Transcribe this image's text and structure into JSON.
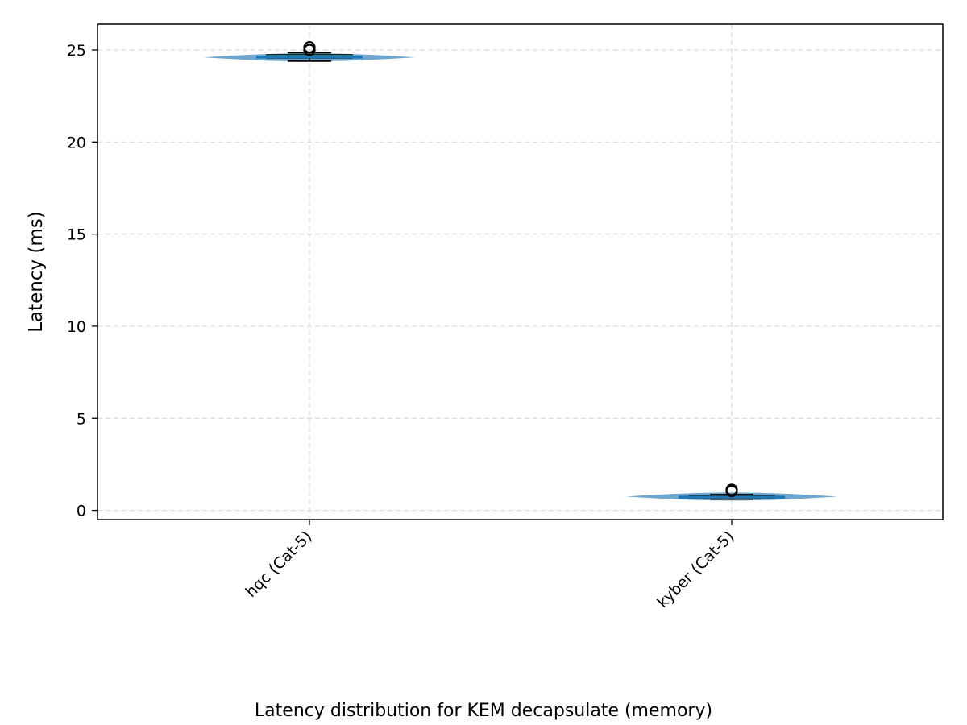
{
  "chart_data": {
    "type": "violin",
    "caption": "Latency distribution for KEM decapsulate (memory)",
    "xlabel": "",
    "ylabel": "Latency (ms)",
    "ylim": [
      -0.5,
      26.4
    ],
    "yticks": [
      0,
      5,
      10,
      15,
      20,
      25
    ],
    "grid": true,
    "categories": [
      "hqc (Cat-5)",
      "kyber (Cat-5)"
    ],
    "series": [
      {
        "category": "hqc (Cat-5)",
        "min": 24.4,
        "q1": 24.55,
        "median": 24.62,
        "q3": 24.75,
        "max": 24.85,
        "outliers": [
          25.0,
          25.15
        ],
        "density_peak": 24.6
      },
      {
        "category": "kyber (Cat-5)",
        "min": 0.62,
        "q1": 0.65,
        "median": 0.72,
        "q3": 0.8,
        "max": 0.85,
        "outliers": [
          1.05,
          1.12
        ],
        "density_peak": 0.75
      }
    ],
    "colors": {
      "violin": "#1f77b4",
      "box_fill": "#2ca089",
      "median": "#1f77b4",
      "grid": "#d9d9d9"
    }
  }
}
